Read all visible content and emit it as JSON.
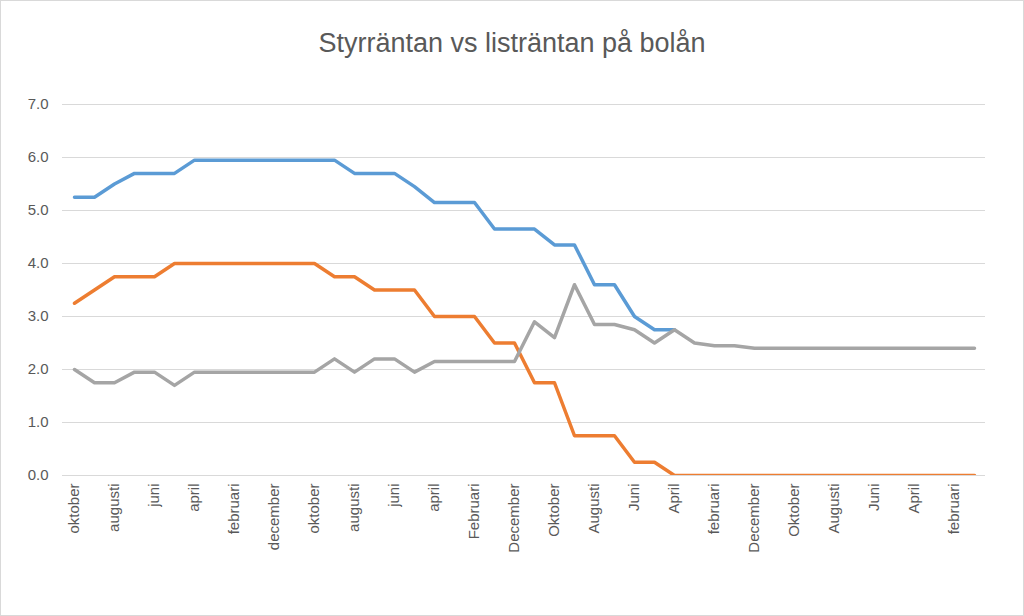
{
  "chart_data": {
    "type": "line",
    "title": "Styrräntan vs listräntan på bolån",
    "categories": [
      "oktober",
      null,
      "augusti",
      null,
      "juni",
      null,
      "april",
      null,
      "februari",
      null,
      "december",
      null,
      "oktober",
      null,
      "augusti",
      null,
      "juni",
      null,
      "april",
      null,
      "Februari",
      null,
      "December",
      null,
      "Oktober",
      null,
      "Augusti",
      null,
      "Juni",
      null,
      "April",
      null,
      "februari",
      null,
      "December",
      null,
      "Oktober",
      null,
      "Augusti",
      null,
      "Juni",
      null,
      "April",
      null,
      "februari",
      null
    ],
    "series": [
      {
        "color": "#5b9bd5",
        "values": [
          5.25,
          5.25,
          5.5,
          5.7,
          5.7,
          5.7,
          5.95,
          5.95,
          5.95,
          5.95,
          5.95,
          5.95,
          5.95,
          5.95,
          5.7,
          5.7,
          5.7,
          5.45,
          5.15,
          5.15,
          5.15,
          4.65,
          4.65,
          4.65,
          4.35,
          4.35,
          3.6,
          3.6,
          3.0,
          2.75,
          2.75,
          null,
          null,
          null,
          null,
          null,
          null,
          null,
          null,
          null,
          null,
          null,
          null,
          null,
          null,
          null
        ]
      },
      {
        "color": "#ed7d31",
        "values": [
          3.25,
          3.5,
          3.75,
          3.75,
          3.75,
          4.0,
          4.0,
          4.0,
          4.0,
          4.0,
          4.0,
          4.0,
          4.0,
          3.75,
          3.75,
          3.5,
          3.5,
          3.5,
          3.0,
          3.0,
          3.0,
          2.5,
          2.5,
          1.75,
          1.75,
          0.75,
          0.75,
          0.75,
          0.25,
          0.25,
          0,
          0,
          0,
          0,
          0,
          0,
          0,
          0,
          0,
          0,
          0,
          0,
          0,
          0,
          0,
          0
        ]
      },
      {
        "color": "#a5a5a5",
        "values": [
          2.0,
          1.75,
          1.75,
          1.95,
          1.95,
          1.7,
          1.95,
          1.95,
          1.95,
          1.95,
          1.95,
          1.95,
          1.95,
          2.2,
          1.95,
          2.2,
          2.2,
          1.95,
          2.15,
          2.15,
          2.15,
          2.15,
          2.15,
          2.9,
          2.6,
          3.6,
          2.85,
          2.85,
          2.75,
          2.5,
          2.75,
          2.5,
          2.45,
          2.45,
          2.4,
          2.4,
          2.4,
          2.4,
          2.4,
          2.4,
          2.4,
          2.4,
          2.4,
          2.4,
          2.4,
          2.4
        ]
      }
    ],
    "ylim": [
      0,
      7
    ],
    "yticks": [
      0,
      1,
      2,
      3,
      4,
      5,
      6,
      7
    ],
    "grid": true
  }
}
